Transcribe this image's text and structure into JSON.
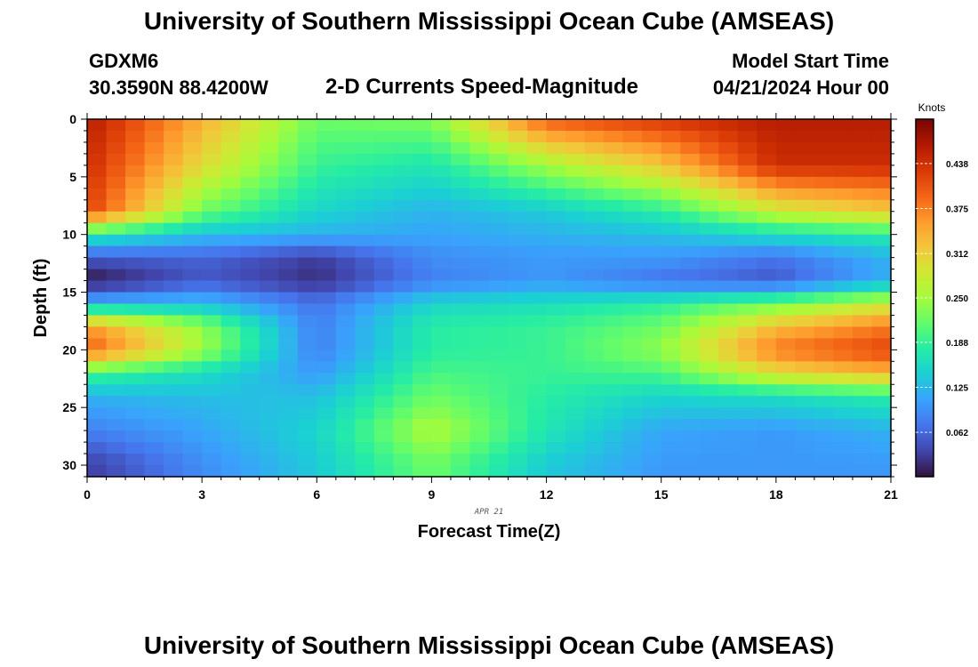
{
  "page": {
    "title_top": "University of Southern Mississippi Ocean Cube (AMSEAS)",
    "title_bottom": "University of Southern Mississippi Ocean Cube (AMSEAS)",
    "station": "GDXM6",
    "coords": "30.3590N  88.4200W",
    "subtitle": "2-D Currents Speed-Magnitude",
    "start_label": "Model Start Time",
    "start_value": "04/21/2024 Hour 00"
  },
  "chart_data": {
    "type": "heatmap",
    "title": "2-D Currents Speed-Magnitude",
    "xlabel": "Forecast Time(Z)",
    "ylabel": "Depth (ft)",
    "date_label": "APR 21",
    "xlim": [
      0,
      21
    ],
    "ylim": [
      0,
      31
    ],
    "x_ticks": [
      0,
      3,
      6,
      9,
      12,
      15,
      18,
      21
    ],
    "y_ticks": [
      0,
      5,
      10,
      15,
      20,
      25,
      30
    ],
    "colorbar": {
      "label": "Knots",
      "min": 0,
      "max": 0.5,
      "ticks": [
        "0.062",
        "0.125",
        "0.188",
        "0.250",
        "0.312",
        "0.375",
        "0.438"
      ],
      "colors": [
        "#30123b",
        "#4145ab",
        "#4675ed",
        "#39a2fc",
        "#1bcfd4",
        "#24eca6",
        "#61fc6c",
        "#a4fc3b",
        "#d1e834",
        "#f3c63a",
        "#fe9b2d",
        "#f36315",
        "#d93806",
        "#b11901",
        "#7a0402"
      ]
    },
    "profiles": {
      "hours": [
        0,
        3,
        6,
        9,
        12,
        15,
        18,
        21
      ],
      "depth_ft": [
        0,
        4,
        8,
        10,
        12,
        14,
        16,
        18,
        20,
        22,
        24,
        27,
        30
      ],
      "speed_knots": [
        [
          0.46,
          0.34,
          0.22,
          0.23,
          0.4,
          0.43,
          0.46,
          0.46
        ],
        [
          0.44,
          0.3,
          0.19,
          0.17,
          0.25,
          0.32,
          0.44,
          0.44
        ],
        [
          0.42,
          0.22,
          0.15,
          0.12,
          0.14,
          0.18,
          0.28,
          0.32
        ],
        [
          0.18,
          0.13,
          0.12,
          0.11,
          0.12,
          0.13,
          0.16,
          0.18
        ],
        [
          0.05,
          0.06,
          0.03,
          0.09,
          0.1,
          0.1,
          0.07,
          0.12
        ],
        [
          0.0,
          0.05,
          0.02,
          0.08,
          0.1,
          0.07,
          0.05,
          0.12
        ],
        [
          0.12,
          0.13,
          0.07,
          0.15,
          0.16,
          0.18,
          0.22,
          0.28
        ],
        [
          0.36,
          0.24,
          0.08,
          0.18,
          0.19,
          0.22,
          0.33,
          0.38
        ],
        [
          0.4,
          0.25,
          0.08,
          0.18,
          0.19,
          0.24,
          0.38,
          0.42
        ],
        [
          0.2,
          0.16,
          0.1,
          0.2,
          0.19,
          0.2,
          0.3,
          0.34
        ],
        [
          0.12,
          0.13,
          0.13,
          0.22,
          0.18,
          0.15,
          0.16,
          0.18
        ],
        [
          0.08,
          0.11,
          0.15,
          0.26,
          0.17,
          0.11,
          0.1,
          0.12
        ],
        [
          0.03,
          0.09,
          0.14,
          0.22,
          0.14,
          0.1,
          0.1,
          0.1
        ]
      ]
    }
  }
}
